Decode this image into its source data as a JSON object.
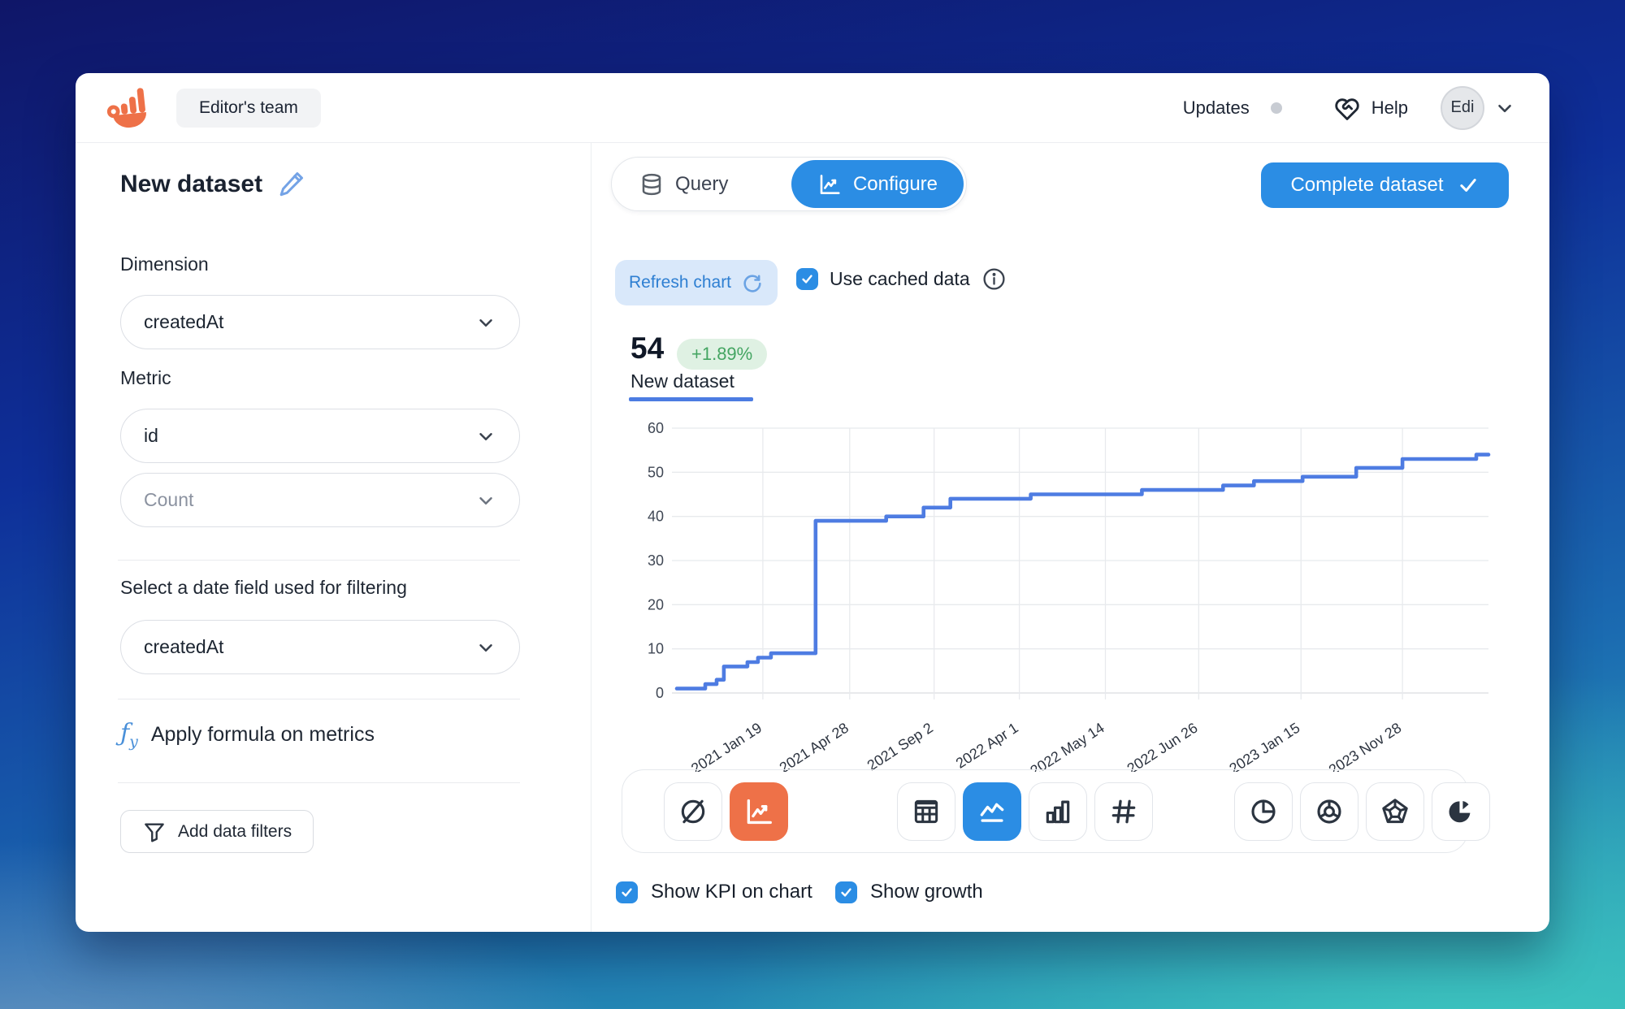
{
  "header": {
    "team_badge": "Editor's team",
    "updates_label": "Updates",
    "help_label": "Help",
    "avatar_label": "Edi",
    "logo_icon": "hand-bars-logo"
  },
  "titlebar": {
    "page_title": "New dataset",
    "tab_query": "Query",
    "tab_configure": "Configure",
    "active_tab": "Configure",
    "complete_button": "Complete dataset"
  },
  "sidebar": {
    "dimension_label": "Dimension",
    "dimension_value": "createdAt",
    "metric_label": "Metric",
    "metric_value": "id",
    "aggregation_placeholder": "Count",
    "date_field_label": "Select a date field used for filtering",
    "date_field_value": "createdAt",
    "formula_link": "Apply formula on metrics",
    "add_filters_button": "Add data filters"
  },
  "main": {
    "refresh_button": "Refresh chart",
    "use_cached_label": "Use cached data",
    "kpi_value": "54",
    "kpi_growth": "+1.89%",
    "kpi_label": "New dataset",
    "show_kpi_label": "Show KPI on chart",
    "show_growth_label": "Show growth",
    "toolbar_icons": {
      "group1": [
        "chart-off",
        "trend-chart-active-orange"
      ],
      "group2": [
        "table",
        "line-chart-active-blue",
        "bar-chart",
        "number"
      ],
      "group3": [
        "pie-chart",
        "donut-chart",
        "radar-chart",
        "pie-exploded"
      ]
    }
  },
  "chart_data": {
    "type": "line",
    "subtype": "step",
    "title": "New dataset",
    "ylabel": "",
    "xlabel": "",
    "ylim": [
      0,
      60
    ],
    "y_ticks": [
      0,
      10,
      20,
      30,
      40,
      50,
      60
    ],
    "grid": true,
    "legend": "none",
    "line_color": "#4e7ce2",
    "x_tick_labels": [
      "2021 Jan 19",
      "2021 Apr 28",
      "2021 Sep 2",
      "2022 Apr 1",
      "2022 May 14",
      "2022 Jun 26",
      "2023 Jan 15",
      "2023 Nov 28"
    ],
    "x_tick_positions": [
      0.106,
      0.213,
      0.317,
      0.422,
      0.528,
      0.643,
      0.769,
      0.894
    ],
    "series": [
      {
        "name": "New dataset",
        "points": [
          [
            0.0,
            1
          ],
          [
            0.035,
            2
          ],
          [
            0.049,
            3
          ],
          [
            0.058,
            6
          ],
          [
            0.087,
            7
          ],
          [
            0.1,
            8
          ],
          [
            0.116,
            9
          ],
          [
            0.171,
            39
          ],
          [
            0.258,
            40
          ],
          [
            0.304,
            42
          ],
          [
            0.337,
            44
          ],
          [
            0.436,
            45
          ],
          [
            0.573,
            46
          ],
          [
            0.673,
            47
          ],
          [
            0.711,
            48
          ],
          [
            0.771,
            49
          ],
          [
            0.837,
            51
          ],
          [
            0.894,
            53
          ],
          [
            0.985,
            54
          ]
        ],
        "final_value": 54,
        "growth": "+1.89%"
      }
    ]
  },
  "colors": {
    "accent_blue": "#2b8de4",
    "accent_orange": "#ee7148",
    "chart_line": "#4e7ce2",
    "growth_badge_bg": "#dff1e3",
    "growth_badge_text": "#44a562",
    "refresh_bg": "#d9e8fa",
    "refresh_text": "#2e7fd2"
  }
}
